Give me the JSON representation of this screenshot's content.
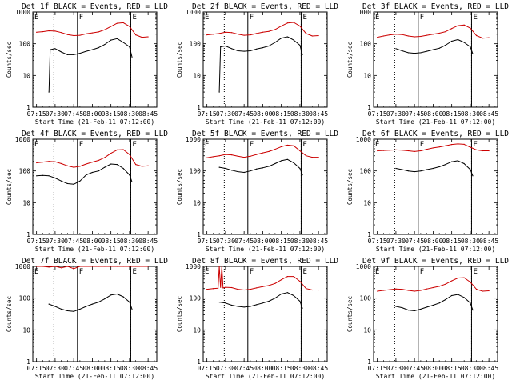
{
  "figure": {
    "time_ticks": [
      "07:15",
      "07:30",
      "07:45",
      "08:00",
      "08:15",
      "08:30",
      "08:45"
    ],
    "y_ticks": [
      "1",
      "10",
      "100",
      "1000"
    ],
    "ylabel": "Counts/sec",
    "xlabel": "Start Time (21-Feb-11 07:12:00)",
    "marker_labels": {
      "E": "E",
      "F": "F"
    }
  },
  "chart_data": [
    {
      "type": "line",
      "title": "Det 1f BLACK = Events, RED = LLD",
      "yscale": "log",
      "ylim": [
        1,
        1000
      ],
      "xlabel": "Start Time (21-Feb-11 07:12:00)",
      "ylabel": "Counts/sec",
      "x_ticks": [
        "07:15",
        "07:30",
        "07:45",
        "08:00",
        "08:15",
        "08:30",
        "08:45"
      ],
      "vertical_lines": {
        "solid": [
          "07:12",
          "07:48",
          "08:31"
        ],
        "dotted": [
          "07:29",
          "08:31"
        ]
      },
      "series": [
        {
          "color": "#cc0000",
          "x": [
            "07:15",
            "07:20",
            "07:25",
            "07:30",
            "07:35",
            "07:40",
            "07:45",
            "07:50",
            "07:55",
            "08:00",
            "08:05",
            "08:10",
            "08:15",
            "08:20",
            "08:25",
            "08:30",
            "08:35",
            "08:40",
            "08:45"
          ],
          "values": [
            230,
            240,
            255,
            250,
            225,
            195,
            180,
            185,
            205,
            220,
            235,
            275,
            350,
            440,
            460,
            350,
            190,
            160,
            165
          ]
        },
        {
          "color": "#000000",
          "x": [
            "07:25",
            "07:26",
            "07:30",
            "07:35",
            "07:40",
            "07:45",
            "07:50",
            "07:55",
            "08:00",
            "08:05",
            "08:10",
            "08:15",
            "08:20",
            "08:25",
            "08:30",
            "08:32"
          ],
          "values": [
            3,
            65,
            70,
            55,
            45,
            45,
            50,
            58,
            65,
            75,
            95,
            130,
            145,
            110,
            80,
            38
          ]
        }
      ]
    },
    {
      "type": "line",
      "title": "Det 2f BLACK = Events, RED = LLD",
      "yscale": "log",
      "ylim": [
        1,
        1000
      ],
      "xlabel": "Start Time (21-Feb-11 07:12:00)",
      "ylabel": "Counts/sec",
      "x_ticks": [
        "07:15",
        "07:30",
        "07:45",
        "08:00",
        "08:15",
        "08:30",
        "08:45"
      ],
      "vertical_lines": {
        "solid": [
          "07:12",
          "07:48",
          "08:31"
        ],
        "dotted": [
          "07:29",
          "08:31"
        ]
      },
      "series": [
        {
          "color": "#cc0000",
          "x": [
            "07:15",
            "07:20",
            "07:25",
            "07:30",
            "07:35",
            "07:40",
            "07:45",
            "07:50",
            "07:55",
            "08:00",
            "08:05",
            "08:10",
            "08:15",
            "08:20",
            "08:25",
            "08:30",
            "08:35",
            "08:40",
            "08:45"
          ],
          "values": [
            190,
            200,
            210,
            230,
            225,
            200,
            185,
            190,
            210,
            230,
            245,
            280,
            360,
            450,
            470,
            360,
            210,
            175,
            180
          ]
        },
        {
          "color": "#000000",
          "x": [
            "07:25",
            "07:26",
            "07:30",
            "07:35",
            "07:40",
            "07:45",
            "07:50",
            "07:55",
            "08:00",
            "08:05",
            "08:10",
            "08:15",
            "08:20",
            "08:25",
            "08:30",
            "08:32"
          ],
          "values": [
            3,
            80,
            85,
            70,
            60,
            58,
            60,
            68,
            75,
            85,
            110,
            150,
            165,
            130,
            90,
            45
          ]
        }
      ]
    },
    {
      "type": "line",
      "title": "Det 3f BLACK = Events, RED = LLD",
      "yscale": "log",
      "ylim": [
        1,
        1000
      ],
      "xlabel": "Start Time (21-Feb-11 07:12:00)",
      "ylabel": "Counts/sec",
      "x_ticks": [
        "07:15",
        "07:30",
        "07:45",
        "08:00",
        "08:15",
        "08:30",
        "08:45"
      ],
      "vertical_lines": {
        "solid": [
          "07:12",
          "07:48",
          "08:31"
        ],
        "dotted": [
          "07:29",
          "08:31"
        ]
      },
      "series": [
        {
          "color": "#cc0000",
          "x": [
            "07:15",
            "07:20",
            "07:25",
            "07:30",
            "07:35",
            "07:40",
            "07:45",
            "07:50",
            "07:55",
            "08:00",
            "08:05",
            "08:10",
            "08:15",
            "08:20",
            "08:25",
            "08:30",
            "08:35",
            "08:40",
            "08:45"
          ],
          "values": [
            160,
            175,
            190,
            200,
            195,
            175,
            165,
            170,
            185,
            200,
            215,
            240,
            300,
            370,
            390,
            310,
            180,
            150,
            155
          ]
        },
        {
          "color": "#000000",
          "x": [
            "07:30",
            "07:35",
            "07:40",
            "07:45",
            "07:50",
            "07:55",
            "08:00",
            "08:05",
            "08:10",
            "08:15",
            "08:20",
            "08:25",
            "08:30",
            "08:32"
          ],
          "values": [
            70,
            60,
            52,
            50,
            52,
            58,
            65,
            72,
            90,
            120,
            135,
            110,
            80,
            48
          ]
        }
      ]
    },
    {
      "type": "line",
      "title": "Det 4f BLACK = Events, RED = LLD",
      "yscale": "log",
      "ylim": [
        1,
        1000
      ],
      "xlabel": "Start Time (21-Feb-11 07:12:00)",
      "ylabel": "Counts/sec",
      "x_ticks": [
        "07:15",
        "07:30",
        "07:45",
        "08:00",
        "08:15",
        "08:30",
        "08:45"
      ],
      "vertical_lines": {
        "solid": [
          "07:12",
          "07:48",
          "08:31"
        ],
        "dotted": [
          "07:29",
          "08:31"
        ]
      },
      "series": [
        {
          "color": "#cc0000",
          "x": [
            "07:15",
            "07:20",
            "07:25",
            "07:30",
            "07:35",
            "07:40",
            "07:45",
            "07:50",
            "07:55",
            "08:00",
            "08:05",
            "08:10",
            "08:15",
            "08:20",
            "08:25",
            "08:30",
            "08:35",
            "08:40",
            "08:45"
          ],
          "values": [
            180,
            190,
            200,
            195,
            170,
            145,
            130,
            140,
            165,
            190,
            215,
            265,
            360,
            460,
            470,
            330,
            160,
            140,
            145
          ]
        },
        {
          "color": "#000000",
          "x": [
            "07:15",
            "07:20",
            "07:25",
            "07:30",
            "07:35",
            "07:40",
            "07:45",
            "07:50",
            "07:55",
            "08:00",
            "08:05",
            "08:10",
            "08:15",
            "08:20",
            "08:25",
            "08:30",
            "08:32"
          ],
          "values": [
            70,
            72,
            70,
            60,
            48,
            40,
            38,
            48,
            75,
            90,
            100,
            130,
            165,
            160,
            120,
            75,
            45
          ]
        }
      ]
    },
    {
      "type": "line",
      "title": "Det 5f BLACK = Events, RED = LLD",
      "yscale": "log",
      "ylim": [
        1,
        1000
      ],
      "xlabel": "Start Time (21-Feb-11 07:12:00)",
      "ylabel": "Counts/sec",
      "x_ticks": [
        "07:15",
        "07:30",
        "07:45",
        "08:00",
        "08:15",
        "08:30",
        "08:45"
      ],
      "vertical_lines": {
        "solid": [
          "07:12",
          "07:48",
          "08:31"
        ],
        "dotted": [
          "07:29",
          "08:31"
        ]
      },
      "series": [
        {
          "color": "#cc0000",
          "x": [
            "07:15",
            "07:20",
            "07:25",
            "07:30",
            "07:35",
            "07:40",
            "07:45",
            "07:50",
            "07:55",
            "08:00",
            "08:05",
            "08:10",
            "08:15",
            "08:20",
            "08:25",
            "08:30",
            "08:35",
            "08:40",
            "08:45"
          ],
          "values": [
            260,
            280,
            300,
            330,
            320,
            290,
            270,
            290,
            330,
            370,
            410,
            480,
            580,
            650,
            620,
            430,
            300,
            270,
            270
          ]
        },
        {
          "color": "#000000",
          "x": [
            "07:25",
            "07:30",
            "07:35",
            "07:40",
            "07:45",
            "07:50",
            "07:55",
            "08:00",
            "08:05",
            "08:10",
            "08:15",
            "08:20",
            "08:25",
            "08:30",
            "08:32"
          ],
          "values": [
            130,
            120,
            105,
            95,
            90,
            100,
            115,
            125,
            140,
            170,
            210,
            230,
            180,
            120,
            75
          ]
        }
      ]
    },
    {
      "type": "line",
      "title": "Det 6f BLACK = Events, RED = LLD",
      "yscale": "log",
      "ylim": [
        1,
        1000
      ],
      "xlabel": "Start Time (21-Feb-11 07:12:00)",
      "ylabel": "Counts/sec",
      "x_ticks": [
        "07:15",
        "07:30",
        "07:45",
        "08:00",
        "08:15",
        "08:30",
        "08:45"
      ],
      "vertical_lines": {
        "solid": [
          "07:12",
          "07:48",
          "08:31"
        ],
        "dotted": [
          "07:29",
          "08:31"
        ]
      },
      "series": [
        {
          "color": "#cc0000",
          "x": [
            "07:15",
            "07:20",
            "07:25",
            "07:30",
            "07:35",
            "07:40",
            "07:45",
            "07:50",
            "07:55",
            "08:00",
            "08:05",
            "08:10",
            "08:15",
            "08:20",
            "08:25",
            "08:30",
            "08:35",
            "08:40",
            "08:45"
          ],
          "values": [
            430,
            440,
            450,
            460,
            450,
            430,
            410,
            430,
            480,
            530,
            570,
            620,
            680,
            710,
            690,
            560,
            460,
            430,
            430
          ]
        },
        {
          "color": "#000000",
          "x": [
            "07:30",
            "07:35",
            "07:40",
            "07:45",
            "07:50",
            "07:55",
            "08:00",
            "08:05",
            "08:10",
            "08:15",
            "08:20",
            "08:25",
            "08:30",
            "08:32"
          ],
          "values": [
            120,
            110,
            100,
            95,
            100,
            110,
            120,
            135,
            160,
            195,
            210,
            170,
            110,
            70
          ]
        }
      ]
    },
    {
      "type": "line",
      "title": "Det 7f BLACK = Events, RED = LLD",
      "yscale": "log",
      "ylim": [
        1,
        1000
      ],
      "xlabel": "Start Time (21-Feb-11 07:12:00)",
      "ylabel": "Counts/sec",
      "x_ticks": [
        "07:15",
        "07:30",
        "07:45",
        "08:00",
        "08:15",
        "08:30",
        "08:45"
      ],
      "vertical_lines": {
        "solid": [
          "07:12",
          "07:48",
          "08:31"
        ],
        "dotted": [
          "07:29",
          "08:31"
        ]
      },
      "series": [
        {
          "color": "#cc0000",
          "x": [
            "07:15",
            "07:20",
            "07:25",
            "07:30",
            "07:35",
            "07:40",
            "07:45",
            "07:50",
            "07:55",
            "08:00",
            "08:05",
            "08:10",
            "08:15",
            "08:20",
            "08:25",
            "08:30",
            "08:35",
            "08:40",
            "08:45"
          ],
          "values": [
            1000,
            1000,
            950,
            1000,
            900,
            1000,
            850,
            1000,
            1000,
            1000,
            1000,
            1000,
            1000,
            1000,
            1000,
            1000,
            1000,
            1000,
            1000
          ]
        },
        {
          "color": "#000000",
          "x": [
            "07:25",
            "07:30",
            "07:35",
            "07:40",
            "07:45",
            "07:50",
            "07:55",
            "08:00",
            "08:05",
            "08:10",
            "08:15",
            "08:20",
            "08:25",
            "08:30",
            "08:32"
          ],
          "values": [
            65,
            55,
            45,
            40,
            38,
            45,
            55,
            65,
            75,
            95,
            125,
            135,
            110,
            75,
            45
          ]
        }
      ]
    },
    {
      "type": "line",
      "title": "Det 8f BLACK = Events, RED = LLD",
      "yscale": "log",
      "ylim": [
        1,
        1000
      ],
      "xlabel": "Start Time (21-Feb-11 07:12:00)",
      "ylabel": "Counts/sec",
      "x_ticks": [
        "07:15",
        "07:30",
        "07:45",
        "08:00",
        "08:15",
        "08:30",
        "08:45"
      ],
      "vertical_lines": {
        "solid": [
          "07:12",
          "07:48",
          "08:31"
        ],
        "dotted": [
          "07:29",
          "08:31"
        ]
      },
      "series": [
        {
          "color": "#cc0000",
          "x": [
            "07:15",
            "07:20",
            "07:24",
            "07:25",
            "07:26",
            "07:27",
            "07:28",
            "07:30",
            "07:35",
            "07:40",
            "07:45",
            "07:50",
            "07:55",
            "08:00",
            "08:05",
            "08:10",
            "08:15",
            "08:20",
            "08:25",
            "08:30",
            "08:35",
            "08:40",
            "08:45"
          ],
          "values": [
            190,
            200,
            205,
            1000,
            220,
            1000,
            210,
            220,
            215,
            190,
            180,
            190,
            210,
            230,
            250,
            290,
            380,
            480,
            480,
            340,
            200,
            180,
            180
          ]
        },
        {
          "color": "#000000",
          "x": [
            "07:25",
            "07:30",
            "07:35",
            "07:40",
            "07:45",
            "07:50",
            "07:55",
            "08:00",
            "08:05",
            "08:10",
            "08:15",
            "08:20",
            "08:25",
            "08:30",
            "08:32"
          ],
          "values": [
            75,
            70,
            60,
            55,
            52,
            55,
            62,
            70,
            80,
            100,
            135,
            150,
            120,
            80,
            48
          ]
        }
      ]
    },
    {
      "type": "line",
      "title": "Det 9f BLACK = Events, RED = LLD",
      "yscale": "log",
      "ylim": [
        1,
        1000
      ],
      "xlabel": "Start Time (21-Feb-11 07:12:00)",
      "ylabel": "Counts/sec",
      "x_ticks": [
        "07:15",
        "07:30",
        "07:45",
        "08:00",
        "08:15",
        "08:30",
        "08:45"
      ],
      "vertical_lines": {
        "solid": [
          "07:12",
          "07:48",
          "08:31"
        ],
        "dotted": [
          "07:29",
          "08:31"
        ]
      },
      "series": [
        {
          "color": "#cc0000",
          "x": [
            "07:15",
            "07:20",
            "07:25",
            "07:30",
            "07:35",
            "07:40",
            "07:45",
            "07:50",
            "07:55",
            "08:00",
            "08:05",
            "08:10",
            "08:15",
            "08:20",
            "08:25",
            "08:30",
            "08:35",
            "08:40",
            "08:45"
          ],
          "values": [
            165,
            175,
            185,
            195,
            190,
            175,
            165,
            175,
            195,
            215,
            235,
            275,
            350,
            430,
            440,
            320,
            190,
            165,
            170
          ]
        },
        {
          "color": "#000000",
          "x": [
            "07:30",
            "07:35",
            "07:40",
            "07:45",
            "07:50",
            "07:55",
            "08:00",
            "08:05",
            "08:10",
            "08:15",
            "08:20",
            "08:25",
            "08:30",
            "08:32"
          ],
          "values": [
            55,
            50,
            42,
            40,
            45,
            52,
            60,
            70,
            90,
            120,
            130,
            105,
            70,
            42
          ]
        }
      ]
    }
  ]
}
